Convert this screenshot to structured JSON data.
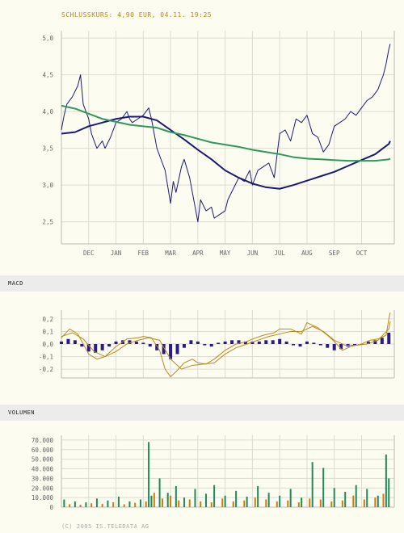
{
  "header": {
    "closing_price": "SCHLUSSKURS: 4,90 EUR, 04.11. 19:25"
  },
  "sections": {
    "macd_label": "MACD",
    "volume_label": "VOLUMEN"
  },
  "footer": {
    "copyright": "(C) 2005 IS.TELEDATA AG"
  },
  "colors": {
    "price": "#1a1a7a",
    "ma_fast": "#1a1a7a",
    "ma_slow": "#2e9a5a",
    "macd_hist": "#2b1a8a",
    "macd_line": "#b88a1a",
    "macd_signal": "#b88a1a",
    "vol_green": "#1f8a5a",
    "vol_orange": "#d07a10"
  },
  "chart_data": [
    {
      "type": "line",
      "title": "SCHLUSSKURS: 4,90 EUR, 04.11. 19:25",
      "ylim": [
        2.2,
        5.1
      ],
      "y_ticks": [
        "5,0",
        "4,5",
        "4,0",
        "3,5",
        "3,0",
        "2,5"
      ],
      "y_tick_values": [
        5.0,
        4.5,
        4.0,
        3.5,
        3.0,
        2.5
      ],
      "x_tick_labels": [
        "DEC",
        "JAN",
        "FEB",
        "MAR",
        "APR",
        "MAY",
        "JUN",
        "JUL",
        "AUG",
        "SEP",
        "OCT"
      ],
      "x_tick_positions": [
        1,
        2,
        3,
        4,
        5,
        6,
        7,
        8,
        9,
        10,
        11
      ],
      "xlim": [
        0,
        12.2
      ],
      "grid": true,
      "series": [
        {
          "key": "price",
          "x": [
            0,
            0.1,
            0.2,
            0.4,
            0.6,
            0.7,
            0.8,
            1,
            1.1,
            1.3,
            1.5,
            1.6,
            1.8,
            2,
            2.2,
            2.4,
            2.5,
            2.6,
            2.8,
            3,
            3.2,
            3.3,
            3.5,
            3.7,
            3.8,
            4,
            4.1,
            4.2,
            4.4,
            4.5,
            4.7,
            4.9,
            5,
            5.1,
            5.3,
            5.5,
            5.6,
            5.8,
            6,
            6.1,
            6.3,
            6.5,
            6.7,
            6.9,
            7,
            7.2,
            7.4,
            7.6,
            7.8,
            8,
            8.2,
            8.4,
            8.6,
            8.8,
            9,
            9.2,
            9.4,
            9.6,
            9.8,
            10,
            10.2,
            10.4,
            10.6,
            10.8,
            11,
            11.2,
            11.4,
            11.6,
            11.8,
            11.9,
            12,
            12.05
          ],
          "y": [
            3.75,
            3.95,
            4.1,
            4.2,
            4.35,
            4.5,
            4.1,
            3.9,
            3.7,
            3.5,
            3.6,
            3.5,
            3.65,
            3.85,
            3.9,
            4.0,
            3.9,
            3.85,
            3.9,
            3.95,
            4.05,
            3.9,
            3.5,
            3.3,
            3.2,
            2.75,
            3.05,
            2.9,
            3.25,
            3.35,
            3.1,
            2.7,
            2.5,
            2.8,
            2.65,
            2.7,
            2.55,
            2.6,
            2.65,
            2.8,
            2.95,
            3.1,
            3.05,
            3.2,
            3.0,
            3.2,
            3.25,
            3.3,
            3.1,
            3.7,
            3.75,
            3.6,
            3.9,
            3.85,
            3.95,
            3.7,
            3.65,
            3.45,
            3.55,
            3.8,
            3.85,
            3.9,
            4.0,
            3.95,
            4.05,
            4.15,
            4.2,
            4.3,
            4.5,
            4.65,
            4.85,
            4.92
          ]
        },
        {
          "key": "ma_fast",
          "x": [
            0,
            0.5,
            1,
            1.5,
            2,
            2.5,
            3,
            3.5,
            4,
            4.5,
            5,
            5.5,
            6,
            6.5,
            7,
            7.5,
            8,
            8.5,
            9,
            9.5,
            10,
            10.5,
            11,
            11.5,
            12,
            12.05
          ],
          "y": [
            3.7,
            3.72,
            3.8,
            3.85,
            3.9,
            3.93,
            3.93,
            3.88,
            3.75,
            3.62,
            3.48,
            3.35,
            3.2,
            3.1,
            3.02,
            2.97,
            2.95,
            3.0,
            3.06,
            3.12,
            3.18,
            3.26,
            3.34,
            3.42,
            3.56,
            3.6
          ]
        },
        {
          "key": "ma_slow",
          "x": [
            0,
            0.5,
            1,
            1.5,
            2,
            2.5,
            3,
            3.5,
            4,
            4.5,
            5,
            5.5,
            6,
            6.5,
            7,
            7.5,
            8,
            8.5,
            9,
            9.5,
            10,
            10.5,
            11,
            11.5,
            12,
            12.05
          ],
          "y": [
            4.08,
            4.04,
            3.97,
            3.9,
            3.86,
            3.82,
            3.8,
            3.78,
            3.72,
            3.68,
            3.63,
            3.58,
            3.55,
            3.52,
            3.48,
            3.45,
            3.42,
            3.38,
            3.36,
            3.35,
            3.34,
            3.33,
            3.33,
            3.33,
            3.35,
            3.36
          ]
        }
      ]
    },
    {
      "type": "line",
      "title": "MACD",
      "ylim": [
        -0.27,
        0.27
      ],
      "y_ticks": [
        "0,2",
        "0,1",
        "0,0",
        "-0,1",
        "-0,2"
      ],
      "y_tick_values": [
        0.2,
        0.1,
        0.0,
        -0.1,
        -0.2
      ],
      "xlim": [
        0,
        12.2
      ],
      "grid": true,
      "series": [
        {
          "key": "macd_line",
          "x": [
            0,
            0.3,
            0.6,
            0.8,
            1,
            1.3,
            1.6,
            2,
            2.4,
            2.8,
            3,
            3.3,
            3.6,
            3.8,
            4,
            4.2,
            4.5,
            4.8,
            5,
            5.3,
            5.6,
            6,
            6.4,
            6.8,
            7,
            7.4,
            7.8,
            8,
            8.4,
            8.8,
            9,
            9.4,
            9.8,
            10,
            10.3,
            10.6,
            11,
            11.3,
            11.6,
            11.9,
            12,
            12.05
          ],
          "y": [
            0.05,
            0.12,
            0.08,
            0.0,
            -0.08,
            -0.12,
            -0.1,
            -0.02,
            0.04,
            0.05,
            0.06,
            0.05,
            -0.05,
            -0.2,
            -0.26,
            -0.22,
            -0.15,
            -0.12,
            -0.15,
            -0.16,
            -0.12,
            -0.05,
            0.0,
            0.02,
            0.04,
            0.07,
            0.09,
            0.12,
            0.12,
            0.08,
            0.17,
            0.13,
            0.06,
            0.02,
            -0.05,
            -0.02,
            0.0,
            0.03,
            0.04,
            0.07,
            0.2,
            0.25
          ]
        },
        {
          "key": "macd_signal",
          "x": [
            0,
            0.4,
            0.8,
            1.2,
            1.6,
            2,
            2.4,
            2.8,
            3.2,
            3.6,
            4,
            4.4,
            4.8,
            5.2,
            5.6,
            6,
            6.4,
            6.8,
            7.2,
            7.6,
            8,
            8.4,
            8.8,
            9.2,
            9.6,
            10,
            10.4,
            10.8,
            11.2,
            11.6,
            12,
            12.05
          ],
          "y": [
            0.06,
            0.09,
            0.04,
            -0.06,
            -0.1,
            -0.06,
            0.0,
            0.03,
            0.05,
            0.03,
            -0.12,
            -0.2,
            -0.17,
            -0.16,
            -0.15,
            -0.08,
            -0.03,
            0.0,
            0.03,
            0.06,
            0.08,
            0.1,
            0.1,
            0.14,
            0.1,
            0.03,
            -0.01,
            -0.01,
            0.0,
            0.03,
            0.12,
            0.18
          ]
        },
        {
          "key": "macd_hist",
          "type": "bar",
          "x": [
            0,
            0.25,
            0.5,
            0.75,
            1,
            1.25,
            1.5,
            1.75,
            2,
            2.25,
            2.5,
            2.75,
            3,
            3.25,
            3.5,
            3.75,
            4,
            4.25,
            4.5,
            4.75,
            5,
            5.25,
            5.5,
            5.75,
            6,
            6.25,
            6.5,
            6.75,
            7,
            7.25,
            7.5,
            7.75,
            8,
            8.25,
            8.5,
            8.75,
            9,
            9.25,
            9.5,
            9.75,
            10,
            10.25,
            10.5,
            10.75,
            11,
            11.25,
            11.5,
            11.75,
            12
          ],
          "y": [
            0.02,
            0.04,
            0.03,
            -0.02,
            -0.06,
            -0.07,
            -0.05,
            -0.02,
            0.02,
            0.03,
            0.03,
            0.02,
            0.01,
            -0.02,
            -0.05,
            -0.08,
            -0.12,
            -0.08,
            -0.03,
            0.03,
            0.02,
            -0.01,
            -0.02,
            0.01,
            0.02,
            0.03,
            0.03,
            0.02,
            0.02,
            0.02,
            0.03,
            0.03,
            0.04,
            0.02,
            -0.01,
            -0.02,
            0.02,
            0.01,
            -0.01,
            -0.03,
            -0.05,
            -0.04,
            -0.02,
            -0.01,
            0.0,
            0.02,
            0.03,
            0.05,
            0.09
          ]
        }
      ]
    },
    {
      "type": "bar",
      "title": "VOLUMEN",
      "ylim": [
        0,
        75000
      ],
      "y_ticks": [
        "70.000",
        "60.000",
        "50.000",
        "40.000",
        "30.000",
        "20.000",
        "10.000",
        "0"
      ],
      "y_tick_values": [
        70000,
        60000,
        50000,
        40000,
        30000,
        20000,
        10000,
        0
      ],
      "xlim": [
        0,
        12.2
      ],
      "grid": true,
      "series": [
        {
          "key": "vol_green",
          "x": [
            0.1,
            0.5,
            0.9,
            1.3,
            1.7,
            2.1,
            2.5,
            2.9,
            3.2,
            3.3,
            3.6,
            3.9,
            4.2,
            4.5,
            4.9,
            5.3,
            5.6,
            6.0,
            6.4,
            6.8,
            7.2,
            7.6,
            8.0,
            8.4,
            8.8,
            9.2,
            9.6,
            10.0,
            10.4,
            10.8,
            11.2,
            11.6,
            11.9,
            12.0
          ],
          "y": [
            8000,
            6000,
            5000,
            9000,
            7000,
            11000,
            6000,
            8000,
            68000,
            12000,
            30000,
            15000,
            22000,
            10000,
            19000,
            14000,
            23000,
            12000,
            17000,
            11000,
            22000,
            15000,
            12000,
            19000,
            10000,
            47000,
            41000,
            20000,
            16000,
            23000,
            19000,
            12000,
            55000,
            30000
          ]
        },
        {
          "key": "vol_orange",
          "x": [
            0.3,
            0.7,
            1.1,
            1.5,
            1.9,
            2.3,
            2.7,
            3.1,
            3.4,
            3.7,
            4.0,
            4.3,
            4.7,
            5.1,
            5.5,
            5.9,
            6.3,
            6.7,
            7.1,
            7.5,
            7.9,
            8.3,
            8.7,
            9.1,
            9.5,
            9.9,
            10.3,
            10.7,
            11.1,
            11.5,
            11.8
          ],
          "y": [
            3000,
            2500,
            4000,
            3500,
            5000,
            3000,
            4500,
            6000,
            15000,
            9000,
            12000,
            7000,
            8000,
            6000,
            5000,
            9000,
            6000,
            7000,
            10000,
            8000,
            6000,
            7000,
            5000,
            9000,
            8000,
            6000,
            7000,
            12000,
            8000,
            10000,
            14000
          ]
        }
      ]
    }
  ]
}
